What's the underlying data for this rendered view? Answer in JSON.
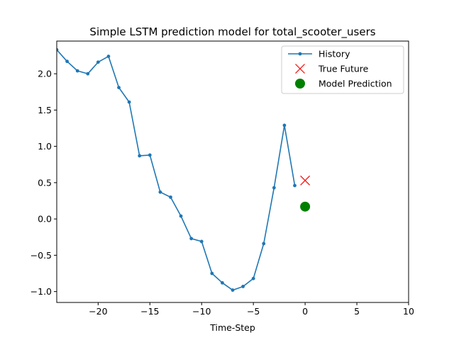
{
  "chart_data": {
    "type": "line",
    "title": "Simple LSTM prediction model for total_scooter_users",
    "xlabel": "Time-Step",
    "ylabel": "",
    "xlim": [
      -24,
      10
    ],
    "ylim": [
      -1.15,
      2.45
    ],
    "xticks": [
      -20,
      -15,
      -10,
      -5,
      0,
      5,
      10
    ],
    "xtick_labels": [
      "−20",
      "−15",
      "−10",
      "−5",
      "0",
      "5",
      "10"
    ],
    "yticks": [
      -1.0,
      -0.5,
      0.0,
      0.5,
      1.0,
      1.5,
      2.0
    ],
    "ytick_labels": [
      "−1.0",
      "−0.5",
      "0.0",
      "0.5",
      "1.0",
      "1.5",
      "2.0"
    ],
    "grid": false,
    "legend_position": "top-right",
    "series": [
      {
        "name": "History",
        "style": "line-with-dots",
        "color": "#1f77b4",
        "x": [
          -24,
          -23,
          -22,
          -21,
          -20,
          -19,
          -18,
          -17,
          -16,
          -15,
          -14,
          -13,
          -12,
          -11,
          -10,
          -9,
          -8,
          -7,
          -6,
          -5,
          -4,
          -3,
          -2,
          -1
        ],
        "y": [
          2.33,
          2.17,
          2.04,
          2.0,
          2.16,
          2.24,
          1.81,
          1.61,
          0.87,
          0.88,
          0.37,
          0.3,
          0.04,
          -0.27,
          -0.31,
          -0.75,
          -0.88,
          -0.98,
          -0.93,
          -0.82,
          -0.34,
          0.43,
          1.29,
          0.46
        ]
      },
      {
        "name": "True Future",
        "style": "x-marker",
        "color": "#ff0000",
        "x": [
          0
        ],
        "y": [
          0.53
        ]
      },
      {
        "name": "Model Prediction",
        "style": "filled-circle",
        "color": "#008000",
        "x": [
          0
        ],
        "y": [
          0.17
        ]
      }
    ]
  }
}
